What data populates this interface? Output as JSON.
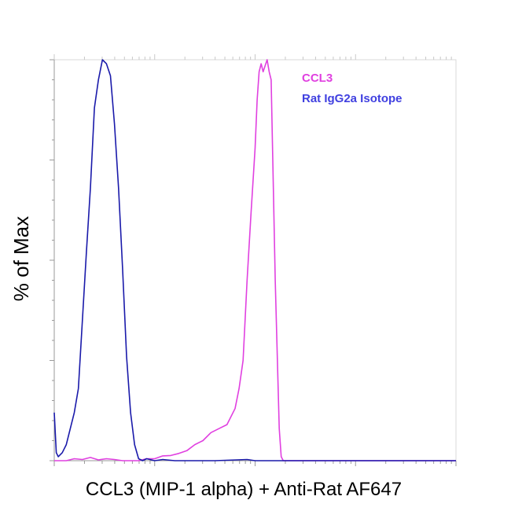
{
  "chart_data": {
    "type": "line",
    "xlabel": "CCL3 (MIP-1 alpha) + Anti-Rat AF647",
    "ylabel": "% of Max",
    "xlim": [
      0,
      100
    ],
    "ylim": [
      0,
      100
    ],
    "x_scale": "log",
    "grid": false,
    "legend_position": "top-right",
    "series": [
      {
        "name": "CCL3",
        "color": "#e040e0",
        "x": [
          0,
          1.5,
          3,
          5,
          7,
          9,
          11,
          13,
          15,
          17,
          19,
          21,
          23,
          25,
          27,
          29,
          31,
          33,
          35,
          37,
          39,
          41,
          43,
          45,
          46,
          47,
          48,
          49,
          50,
          50.5,
          51,
          51.5,
          52,
          53,
          53.5,
          54,
          54.5,
          55,
          56,
          56.5,
          57,
          58,
          59,
          60,
          62,
          65,
          70,
          80,
          90,
          100
        ],
        "y": [
          0,
          0,
          0,
          0.5,
          0.3,
          0.8,
          0.2,
          0.5,
          0.3,
          0,
          0,
          0,
          0.5,
          0.5,
          1.2,
          1.3,
          1.8,
          2.5,
          4,
          5,
          7,
          8,
          9,
          13,
          18,
          25,
          45,
          62,
          78,
          90,
          97,
          99,
          97,
          100,
          97,
          95,
          70,
          45,
          8,
          1,
          0,
          0,
          0,
          0,
          0,
          0,
          0,
          0,
          0,
          0
        ]
      },
      {
        "name": "Rat IgG2a Isotope",
        "color": "#1a1aaa",
        "x": [
          0,
          0.5,
          1,
          2,
          3,
          4,
          5,
          6,
          7,
          8,
          9,
          10,
          11,
          12,
          13,
          14,
          15,
          16,
          17,
          18,
          19,
          20,
          21,
          22,
          23,
          25,
          27,
          30,
          35,
          40,
          48,
          50,
          60,
          80,
          100
        ],
        "y": [
          12,
          2,
          1,
          2,
          4,
          8,
          12,
          18,
          35,
          52,
          68,
          88,
          95,
          100,
          99,
          96,
          84,
          68,
          48,
          26,
          12,
          4,
          0.5,
          0,
          0.5,
          0,
          0.3,
          0,
          0,
          0,
          0.3,
          0,
          0,
          0,
          0
        ]
      }
    ]
  }
}
